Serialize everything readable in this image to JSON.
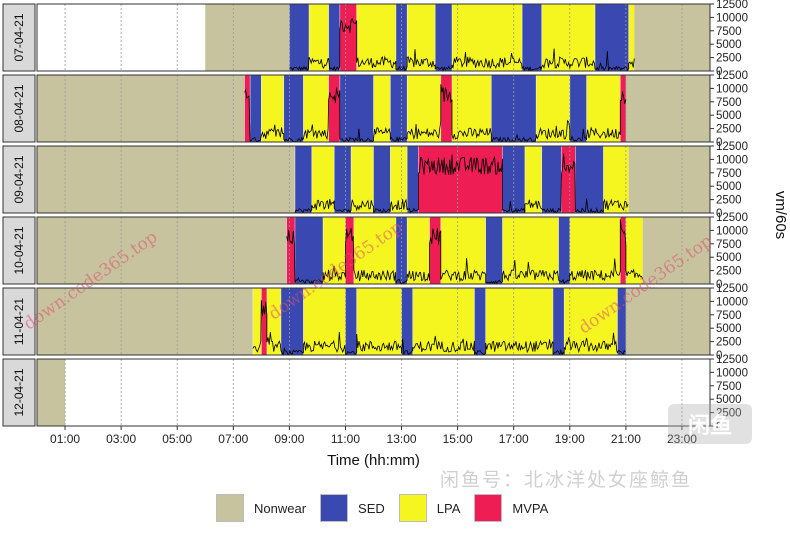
{
  "chart_data": {
    "type": "activity-timeline",
    "xlabel": "Time (hh:mm)",
    "ylabel": "vm/60s",
    "x_ticks": [
      "01:00",
      "03:00",
      "05:00",
      "07:00",
      "09:00",
      "11:00",
      "13:00",
      "15:00",
      "17:00",
      "19:00",
      "21:00",
      "23:00"
    ],
    "x_tick_values": [
      1,
      3,
      5,
      7,
      9,
      11,
      13,
      15,
      17,
      19,
      21,
      23
    ],
    "y_ticks": [
      "0",
      "2500",
      "5000",
      "7500",
      "10000",
      "12500"
    ],
    "y_tick_values": [
      0,
      2500,
      5000,
      7500,
      10000,
      12500
    ],
    "xlim": [
      0,
      24
    ],
    "ylim": [
      0,
      12500
    ],
    "colors": {
      "Nonwear": "#c7c39e",
      "SED": "#3a49b1",
      "LPA": "#f5f520",
      "MVPA": "#ee1e55"
    },
    "legend": [
      {
        "label": "Nonwear",
        "color": "#c7c39e"
      },
      {
        "label": "SED",
        "color": "#3a49b1"
      },
      {
        "label": "LPA",
        "color": "#f5f520"
      },
      {
        "label": "MVPA",
        "color": "#ee1e55"
      }
    ],
    "days": [
      {
        "label": "07-04-21",
        "segments": [
          {
            "start": 6.0,
            "end": 9.0,
            "cat": "Nonwear"
          },
          {
            "start": 9.0,
            "end": 9.7,
            "cat": "SED"
          },
          {
            "start": 9.7,
            "end": 10.4,
            "cat": "LPA"
          },
          {
            "start": 10.4,
            "end": 10.8,
            "cat": "SED"
          },
          {
            "start": 10.8,
            "end": 11.4,
            "cat": "MVPA"
          },
          {
            "start": 11.4,
            "end": 12.8,
            "cat": "LPA"
          },
          {
            "start": 12.8,
            "end": 13.2,
            "cat": "SED"
          },
          {
            "start": 13.2,
            "end": 14.2,
            "cat": "LPA"
          },
          {
            "start": 14.2,
            "end": 14.8,
            "cat": "SED"
          },
          {
            "start": 14.8,
            "end": 17.3,
            "cat": "LPA"
          },
          {
            "start": 17.3,
            "end": 18.0,
            "cat": "SED"
          },
          {
            "start": 18.0,
            "end": 19.9,
            "cat": "LPA"
          },
          {
            "start": 19.9,
            "end": 21.1,
            "cat": "SED"
          },
          {
            "start": 21.1,
            "end": 21.3,
            "cat": "LPA"
          },
          {
            "start": 21.3,
            "end": 24.0,
            "cat": "Nonwear"
          }
        ]
      },
      {
        "label": "08-04-21",
        "segments": [
          {
            "start": 0.0,
            "end": 7.4,
            "cat": "Nonwear"
          },
          {
            "start": 7.4,
            "end": 7.6,
            "cat": "MVPA"
          },
          {
            "start": 7.6,
            "end": 8.0,
            "cat": "SED"
          },
          {
            "start": 8.0,
            "end": 8.8,
            "cat": "LPA"
          },
          {
            "start": 8.8,
            "end": 9.5,
            "cat": "SED"
          },
          {
            "start": 9.5,
            "end": 10.4,
            "cat": "LPA"
          },
          {
            "start": 10.4,
            "end": 10.8,
            "cat": "MVPA"
          },
          {
            "start": 10.8,
            "end": 12.0,
            "cat": "SED"
          },
          {
            "start": 12.0,
            "end": 12.6,
            "cat": "LPA"
          },
          {
            "start": 12.6,
            "end": 13.2,
            "cat": "SED"
          },
          {
            "start": 13.2,
            "end": 14.4,
            "cat": "LPA"
          },
          {
            "start": 14.4,
            "end": 14.8,
            "cat": "MVPA"
          },
          {
            "start": 14.8,
            "end": 16.2,
            "cat": "LPA"
          },
          {
            "start": 16.2,
            "end": 17.8,
            "cat": "SED"
          },
          {
            "start": 17.8,
            "end": 19.0,
            "cat": "LPA"
          },
          {
            "start": 19.0,
            "end": 19.6,
            "cat": "SED"
          },
          {
            "start": 19.6,
            "end": 20.8,
            "cat": "LPA"
          },
          {
            "start": 20.8,
            "end": 21.0,
            "cat": "MVPA"
          },
          {
            "start": 21.0,
            "end": 24.0,
            "cat": "Nonwear"
          }
        ]
      },
      {
        "label": "09-04-21",
        "segments": [
          {
            "start": 0.0,
            "end": 9.2,
            "cat": "Nonwear"
          },
          {
            "start": 9.2,
            "end": 9.8,
            "cat": "SED"
          },
          {
            "start": 9.8,
            "end": 10.6,
            "cat": "LPA"
          },
          {
            "start": 10.6,
            "end": 11.2,
            "cat": "SED"
          },
          {
            "start": 11.2,
            "end": 12.0,
            "cat": "LPA"
          },
          {
            "start": 12.0,
            "end": 12.6,
            "cat": "SED"
          },
          {
            "start": 12.6,
            "end": 13.2,
            "cat": "LPA"
          },
          {
            "start": 13.2,
            "end": 13.6,
            "cat": "SED"
          },
          {
            "start": 13.6,
            "end": 16.6,
            "cat": "MVPA"
          },
          {
            "start": 16.6,
            "end": 17.4,
            "cat": "SED"
          },
          {
            "start": 17.4,
            "end": 18.0,
            "cat": "LPA"
          },
          {
            "start": 18.0,
            "end": 18.7,
            "cat": "SED"
          },
          {
            "start": 18.7,
            "end": 19.2,
            "cat": "MVPA"
          },
          {
            "start": 19.2,
            "end": 20.2,
            "cat": "SED"
          },
          {
            "start": 20.2,
            "end": 21.1,
            "cat": "LPA"
          },
          {
            "start": 21.1,
            "end": 24.0,
            "cat": "Nonwear"
          }
        ]
      },
      {
        "label": "10-04-21",
        "segments": [
          {
            "start": 0.0,
            "end": 8.9,
            "cat": "Nonwear"
          },
          {
            "start": 8.9,
            "end": 9.2,
            "cat": "MVPA"
          },
          {
            "start": 9.2,
            "end": 10.2,
            "cat": "SED"
          },
          {
            "start": 10.2,
            "end": 11.0,
            "cat": "LPA"
          },
          {
            "start": 11.0,
            "end": 11.3,
            "cat": "MVPA"
          },
          {
            "start": 11.3,
            "end": 12.8,
            "cat": "LPA"
          },
          {
            "start": 12.8,
            "end": 13.2,
            "cat": "SED"
          },
          {
            "start": 13.2,
            "end": 14.0,
            "cat": "LPA"
          },
          {
            "start": 14.0,
            "end": 14.4,
            "cat": "MVPA"
          },
          {
            "start": 14.4,
            "end": 16.0,
            "cat": "LPA"
          },
          {
            "start": 16.0,
            "end": 16.6,
            "cat": "SED"
          },
          {
            "start": 16.6,
            "end": 18.6,
            "cat": "LPA"
          },
          {
            "start": 18.6,
            "end": 19.0,
            "cat": "SED"
          },
          {
            "start": 19.0,
            "end": 20.8,
            "cat": "LPA"
          },
          {
            "start": 20.8,
            "end": 21.0,
            "cat": "MVPA"
          },
          {
            "start": 21.0,
            "end": 21.6,
            "cat": "LPA"
          },
          {
            "start": 21.6,
            "end": 24.0,
            "cat": "Nonwear"
          }
        ]
      },
      {
        "label": "11-04-21",
        "segments": [
          {
            "start": 0.0,
            "end": 7.7,
            "cat": "Nonwear"
          },
          {
            "start": 7.7,
            "end": 8.0,
            "cat": "LPA"
          },
          {
            "start": 8.0,
            "end": 8.2,
            "cat": "MVPA"
          },
          {
            "start": 8.2,
            "end": 8.7,
            "cat": "LPA"
          },
          {
            "start": 8.7,
            "end": 9.5,
            "cat": "SED"
          },
          {
            "start": 9.5,
            "end": 11.0,
            "cat": "LPA"
          },
          {
            "start": 11.0,
            "end": 11.4,
            "cat": "SED"
          },
          {
            "start": 11.4,
            "end": 13.0,
            "cat": "LPA"
          },
          {
            "start": 13.0,
            "end": 13.4,
            "cat": "SED"
          },
          {
            "start": 13.4,
            "end": 15.6,
            "cat": "LPA"
          },
          {
            "start": 15.6,
            "end": 16.0,
            "cat": "SED"
          },
          {
            "start": 16.0,
            "end": 18.4,
            "cat": "LPA"
          },
          {
            "start": 18.4,
            "end": 18.8,
            "cat": "SED"
          },
          {
            "start": 18.8,
            "end": 20.7,
            "cat": "LPA"
          },
          {
            "start": 20.7,
            "end": 21.0,
            "cat": "SED"
          },
          {
            "start": 21.0,
            "end": 24.0,
            "cat": "Nonwear"
          }
        ]
      },
      {
        "label": "12-04-21",
        "segments": [
          {
            "start": 0.0,
            "end": 1.0,
            "cat": "Nonwear"
          }
        ]
      }
    ]
  },
  "watermarks": {
    "url_1": "down.code365.top",
    "url_2": "down.code365.top",
    "url_3": "down.code365.top",
    "caption": "闲鱼号：北冰洋处女座鲸鱼",
    "logo": "闲鱼"
  }
}
